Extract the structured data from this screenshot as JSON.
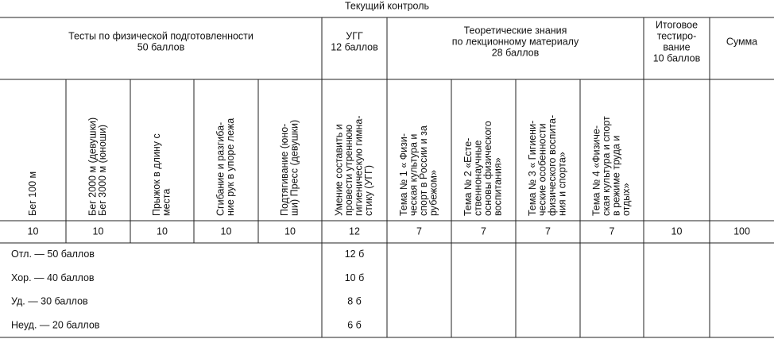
{
  "title": "Текущий контроль",
  "groups": [
    {
      "lines": [
        "Тесты по физической подготовленности",
        "50 баллов"
      ]
    },
    {
      "lines": [
        "УГГ",
        "12 баллов"
      ]
    },
    {
      "lines": [
        "Теоретические знания",
        "по лекционному материалу",
        "28 баллов"
      ]
    },
    {
      "lines": [
        "Итоговое",
        "тестиро-",
        "вание",
        "10 баллов"
      ]
    },
    {
      "lines": [
        "Сумма"
      ]
    }
  ],
  "subheaders": [
    {
      "lines": [
        "Бег 100 м"
      ]
    },
    {
      "lines": [
        "Бег 2000 м (девушки)",
        "Бег 3000 м (юноши)"
      ]
    },
    {
      "lines": [
        "Прыжок в длину с",
        "места"
      ]
    },
    {
      "lines": [
        "Сгибание и разгиба-",
        "ние рук в упоре лежа"
      ]
    },
    {
      "lines": [
        "Подтягивание (юно-",
        "ши) Пресс (девушки)"
      ]
    },
    {
      "lines": [
        "Умение составить и",
        "провести утреннюю",
        "гигиеническую гимна-",
        "стику (УГГ)"
      ]
    },
    {
      "lines": [
        "Тема № 1 « Физи-",
        "ческая культура и",
        "спорт в России и за",
        "рубежом»"
      ]
    },
    {
      "lines": [
        "Тема № 2 «Есте-",
        "ственнонаучные",
        "основы физического",
        "воспитания»"
      ]
    },
    {
      "lines": [
        "Тема № 3 « Гигиени-",
        "ческие особенности",
        "физического воспита-",
        "ния и спорта»"
      ]
    },
    {
      "lines": [
        "Тема № 4 «Физиче-",
        "ская культура и спорт",
        "в режиме труда и",
        "отдых»"
      ]
    }
  ],
  "points": [
    10,
    10,
    10,
    10,
    10,
    12,
    7,
    7,
    7,
    7,
    10,
    100
  ],
  "grades": [
    {
      "label": "Отл. — 50 баллов",
      "ugg": "12 б"
    },
    {
      "label": "Хор. — 40 баллов",
      "ugg": "10 б"
    },
    {
      "label": "Уд. — 30 баллов",
      "ugg": "8 б"
    },
    {
      "label": "Неуд. — 20 баллов",
      "ugg": "6 б"
    }
  ]
}
